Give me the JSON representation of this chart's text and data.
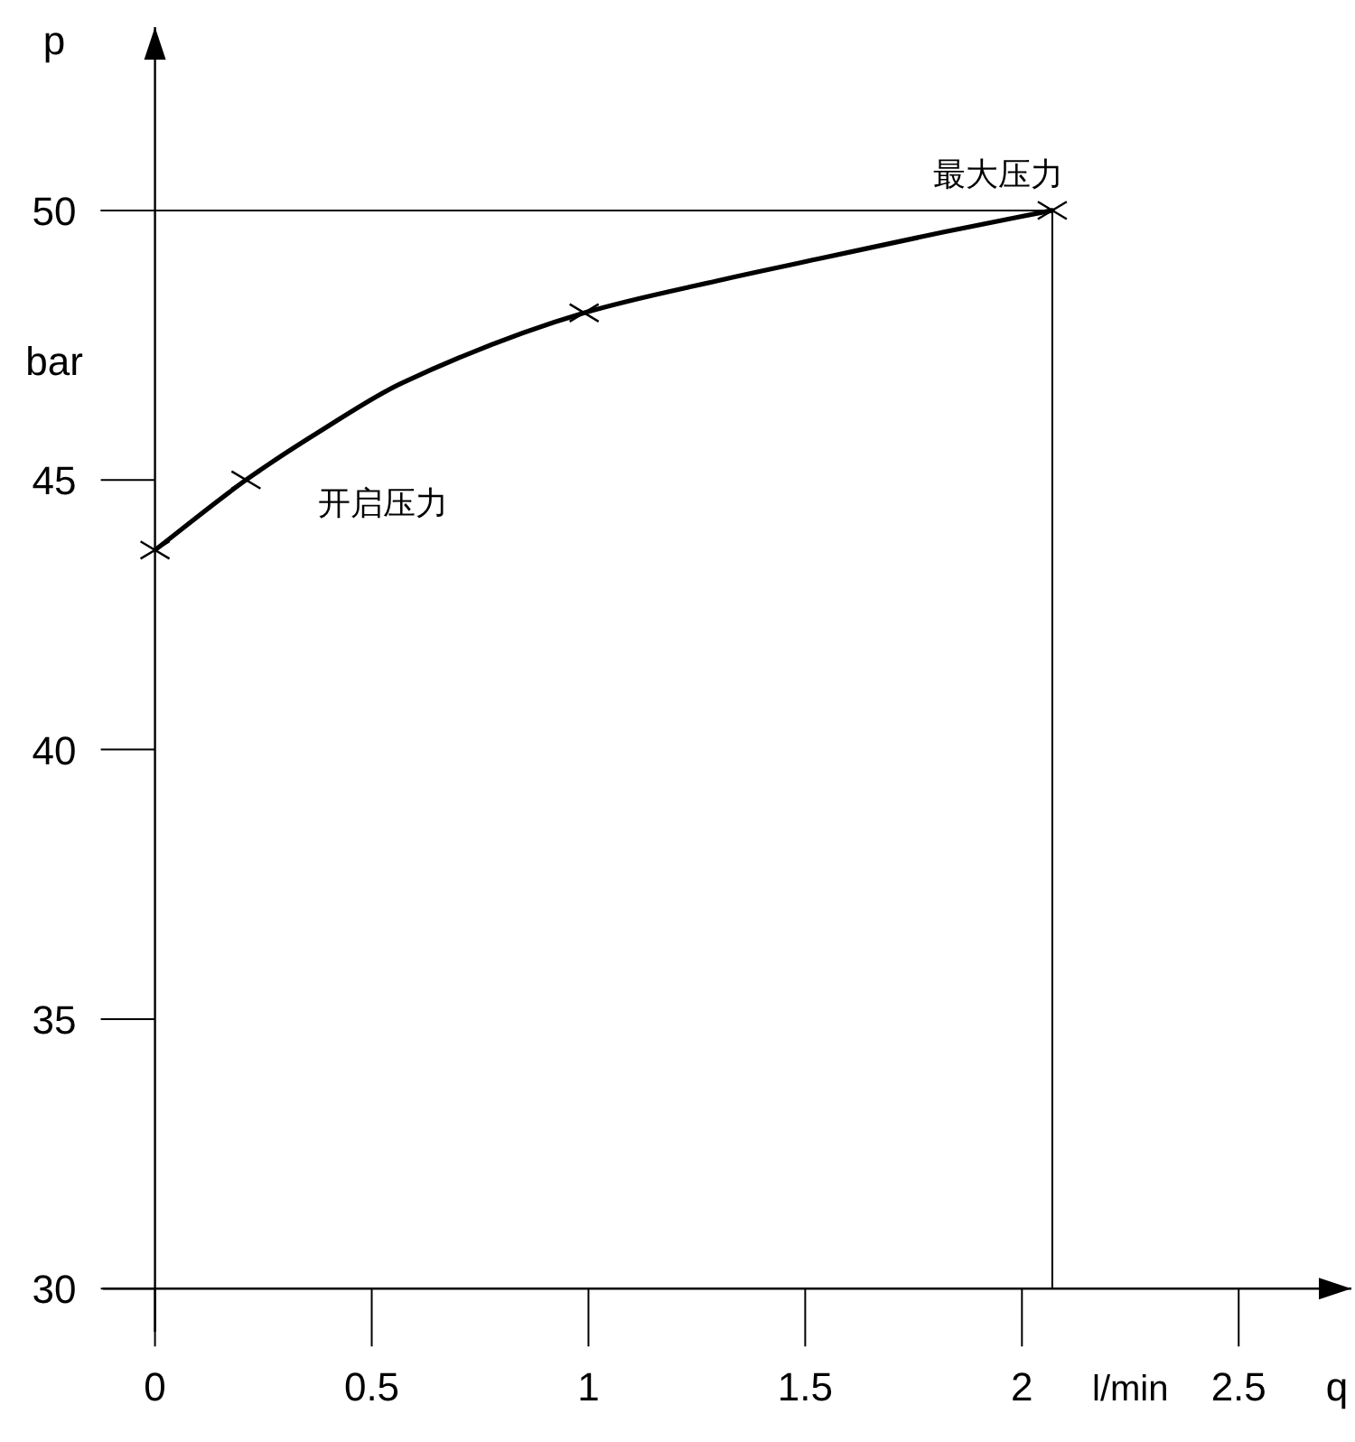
{
  "chart_data": {
    "type": "line",
    "xlabel": "q",
    "ylabel": "p",
    "xlim": [
      -0.12,
      2.76
    ],
    "ylim": [
      29.2,
      53.4
    ],
    "xticks": [
      0,
      0.5,
      1,
      1.5,
      2,
      2.5
    ],
    "yticks": [
      30,
      35,
      40,
      45,
      50
    ],
    "grid": false,
    "series": [
      {
        "type": "line",
        "color": "#000000",
        "marker": "none",
        "x": [
          0,
          0.21,
          0.38,
          0.57,
          0.99,
          1.3,
          1.53,
          1.82,
          2.07
        ],
        "values": [
          43.7,
          45.0,
          45.9,
          46.8,
          48.1,
          48.7,
          49.1,
          49.6,
          50.0
        ]
      },
      {
        "type": "scatter",
        "color": "#000000",
        "marker": "cross",
        "x": [
          0,
          0.21,
          0.99,
          2.07
        ],
        "values": [
          43.7,
          45.0,
          48.1,
          50.0
        ]
      }
    ],
    "ref_lines": [
      {
        "axis": "y",
        "value": 50,
        "label": null
      },
      {
        "axis": "x",
        "value": 2.07,
        "label": null
      }
    ],
    "annotations": [
      {
        "text": "最大压力",
        "x": 2.07,
        "y": 50
      },
      {
        "text": "开启压力",
        "x": 0.21,
        "y": 45
      },
      "bar",
      "l/min"
    ]
  }
}
